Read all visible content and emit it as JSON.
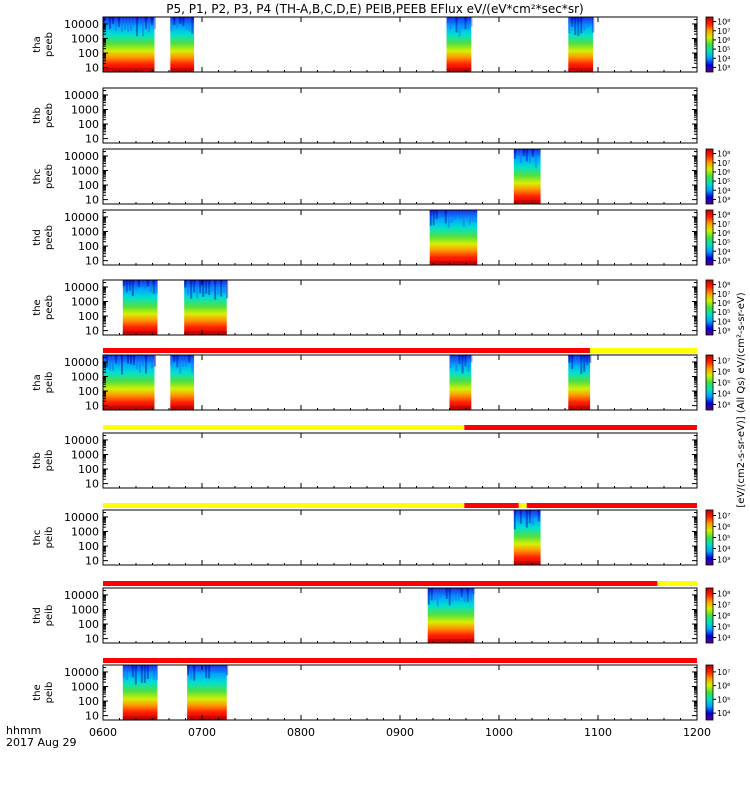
{
  "chart_data": {
    "type": "heatmap",
    "title": "P5, P1, P2, P3, P4 (TH-A,B,C,D,E) PEIB,PEEB EFlux eV/(eV*cm²*sec*sr)",
    "colorbar_label": "[eV/(cm2-s-sr-eV)] (All Qs) eV/(cm²-s-sr-eV)",
    "x_label_line1": "hhmm",
    "x_label_line2": "2017 Aug 29",
    "x_ticks": [
      "0600",
      "0700",
      "0800",
      "0900",
      "1000",
      "1100",
      "1200"
    ],
    "x_range_hours": [
      6.0,
      12.0
    ],
    "y_ticks": [
      "10",
      "100",
      "1000",
      "10000"
    ],
    "y_range_eV": [
      5,
      30000
    ],
    "y_scale": "log",
    "colorscale": [
      "#5a0080",
      "#0000d8",
      "#00a0ff",
      "#00e0c0",
      "#40e040",
      "#d0f000",
      "#ffa000",
      "#ff2000",
      "#c00000"
    ],
    "panels": [
      {
        "label": "tha peeb",
        "line1": "tha",
        "line2": "peeb",
        "cbar_ticks": [
          "10³",
          "10⁴",
          "10⁵",
          "10⁶",
          "10⁷",
          "10⁸"
        ],
        "intervals": [
          [
            6.0,
            6.52
          ],
          [
            6.68,
            6.92
          ],
          [
            9.47,
            9.72
          ],
          [
            10.7,
            10.95
          ]
        ]
      },
      {
        "label": "thb peeb",
        "line1": "thb",
        "line2": "peeb",
        "cbar_ticks": [],
        "intervals": []
      },
      {
        "label": "thc peeb",
        "line1": "thc",
        "line2": "peeb",
        "cbar_ticks": [
          "10³",
          "10⁴",
          "10⁵",
          "10⁶",
          "10⁷",
          "10⁸"
        ],
        "intervals": [
          [
            10.15,
            10.42
          ]
        ]
      },
      {
        "label": "thd peeb",
        "line1": "thd",
        "line2": "peeb",
        "cbar_ticks": [
          "10³",
          "10⁴",
          "10⁵",
          "10⁶",
          "10⁷",
          "10⁸"
        ],
        "intervals": [
          [
            9.3,
            9.78
          ]
        ]
      },
      {
        "label": "the peeb",
        "line1": "the",
        "line2": "peeb",
        "cbar_ticks": [
          "10³",
          "10⁴",
          "10⁵",
          "10⁶",
          "10⁷",
          "10⁸"
        ],
        "intervals": [
          [
            6.2,
            6.55
          ],
          [
            6.82,
            7.25
          ]
        ]
      },
      {
        "label": "tha peib",
        "line1": "tha",
        "line2": "peib",
        "cbar_ticks": [
          "10³",
          "10⁴",
          "10⁵",
          "10⁶",
          "10⁷"
        ],
        "intervals": [
          [
            6.0,
            6.52
          ],
          [
            6.68,
            6.92
          ],
          [
            9.5,
            9.72
          ],
          [
            10.7,
            10.92
          ]
        ]
      },
      {
        "label": "thb peib",
        "line1": "thb",
        "line2": "peib",
        "cbar_ticks": [],
        "intervals": []
      },
      {
        "label": "thc peib",
        "line1": "thc",
        "line2": "peib",
        "cbar_ticks": [
          "10³",
          "10⁴",
          "10⁵",
          "10⁶",
          "10⁷"
        ],
        "intervals": [
          [
            10.15,
            10.42
          ]
        ]
      },
      {
        "label": "thd peib",
        "line1": "thd",
        "line2": "peib",
        "cbar_ticks": [
          "10⁴",
          "10⁵",
          "10⁶",
          "10⁷",
          "10⁸"
        ],
        "intervals": [
          [
            9.28,
            9.75
          ]
        ]
      },
      {
        "label": "the peib",
        "line1": "the",
        "line2": "peib",
        "cbar_ticks": [
          "10⁴",
          "10⁵",
          "10⁶",
          "10⁷"
        ],
        "intervals": [
          [
            6.2,
            6.55
          ],
          [
            6.85,
            7.25
          ]
        ]
      }
    ],
    "mode_bars": [
      {
        "after_panel": 5,
        "segments": [
          {
            "from": 6.0,
            "to": 10.92,
            "color": "#ff0000"
          },
          {
            "from": 10.92,
            "to": 12.0,
            "color": "#ffff00"
          }
        ]
      },
      {
        "after_panel": 6,
        "segments": [
          {
            "from": 6.0,
            "to": 9.65,
            "color": "#ffff00"
          },
          {
            "from": 9.65,
            "to": 12.0,
            "color": "#ff0000"
          }
        ]
      },
      {
        "after_panel": 7,
        "segments": [
          {
            "from": 6.0,
            "to": 9.65,
            "color": "#ffff00"
          },
          {
            "from": 9.65,
            "to": 10.2,
            "color": "#ff0000"
          },
          {
            "from": 10.2,
            "to": 10.28,
            "color": "#ffff00"
          },
          {
            "from": 10.28,
            "to": 12.0,
            "color": "#ff0000"
          }
        ]
      },
      {
        "after_panel": 8,
        "segments": [
          {
            "from": 6.0,
            "to": 11.6,
            "color": "#ff0000"
          },
          {
            "from": 11.6,
            "to": 12.0,
            "color": "#ffff00"
          }
        ]
      },
      {
        "after_panel": 9,
        "segments": [
          {
            "from": 6.0,
            "to": 12.0,
            "color": "#ff0000"
          }
        ]
      }
    ]
  }
}
